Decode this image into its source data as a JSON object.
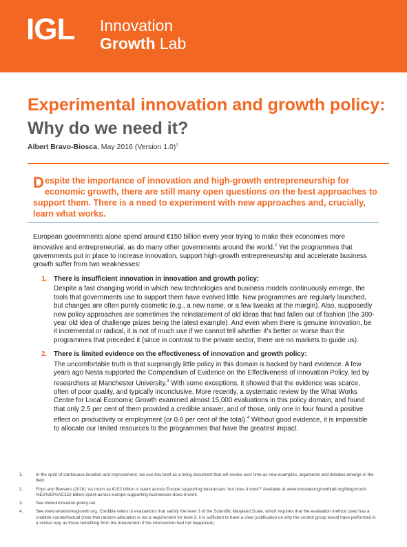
{
  "header": {
    "logo": "IGL",
    "brand_line1": "Innovation",
    "brand_bold": "Growth",
    "brand_rest": "Lab"
  },
  "title": {
    "part1": "Experimental innovation and growth policy:",
    "part2": "Why do we need it?"
  },
  "byline": {
    "author": "Albert Bravo-Biosca",
    "date": ", May 2016 (Version 1.0)",
    "note": "1"
  },
  "intro": {
    "dropcap": "D",
    "text": "espite the importance of innovation and high-growth entrepreneurship for economic growth, there are still many open questions on the best approaches to support them. There is a need to experiment with new approaches and, crucially, learn what works."
  },
  "body": {
    "p1a": "European governments alone spend around €150 billion every year trying to make their economies more innovative and entrepreneurial, as do many other governments around the world.",
    "p1note": "2",
    "p1b": " Yet the programmes that governments put in place to increase innovation, support high-growth entrepreneurship and accelerate business growth suffer from two weaknesses:"
  },
  "list": [
    {
      "number": "1.",
      "heading": "There is insufficient innovation in innovation and growth policy:",
      "text": "Despite a fast changing world in which new technologies and business models continuously emerge, the tools that governments use to support them have evolved little. New programmes are regularly launched, but changes are often purely cosmetic (e.g., a new name, or a few tweaks at the margin). Also, supposedly new policy approaches are sometimes the reinstatement of old ideas that had fallen out of fashion (the 300-year old idea of challenge prizes being the latest example). And even when there is genuine innovation, be it incremental or radical, it is not of much use if we cannot tell whether it’s better or worse than the programmes that preceded it (since in contrast to the private sector, there are no markets to guide us)."
    },
    {
      "number": "2.",
      "heading": "There is limited evidence on the effectiveness of innovation and growth policy:",
      "text_a": "The uncomfortable truth is that surprisingly little policy in this domain is backed by hard evidence. A few years ago Nesta supported the Compendium of Evidence on the Effectiveness of Innovation Policy, led by researchers at Manchester University.",
      "note_a": "3",
      "text_b": " With some exceptions, it showed that the evidence was scarce, often of poor quality, and typically inconclusive. More recently, a systematic review by the What Works Centre for Local Economic Growth examined almost 15,000 evaluations in this policy domain, and found that only 2.5 per cent of them provided a credible answer, and of those, only one in four found a positive effect on productivity or employment (or 0.6 per cent of the total).",
      "note_b": "4",
      "text_c": " Without good evidence, it is impossible to allocate our limited resources to the programmes that have the greatest impact."
    }
  ],
  "footnotes": [
    {
      "number": "1.",
      "text": "In the spirit of continuous iteration and improvement, we see this brief as a living document that will evolve over time as new examples, arguments and debates emerge in the field."
    },
    {
      "number": "2.",
      "text": "Firpo and Beevers (2016) ‘As much as €152 billion is spent across Europe supporting businesses: but does it work?’ Available at www.innovationgrowthlab.org/blog/much-%E2%82%AC152-billion-spent-across-europe-supporting-businesses-does-it-work."
    },
    {
      "number": "3.",
      "text": "See www.innovation-policy.net."
    },
    {
      "number": "4.",
      "text": "See www.whatworksgrowth.org. Credible refers to evaluations that satisfy the level 3 of the Scientific Maryland Scale, which requires that the evaluation method used has a credible counterfactual (note that random allocation is not a requirement for level 3, it is sufficient to have a clear justification on why the control group would have performed in a similar way as those benefiting from the intervention if the intervention had not happened)."
    }
  ]
}
